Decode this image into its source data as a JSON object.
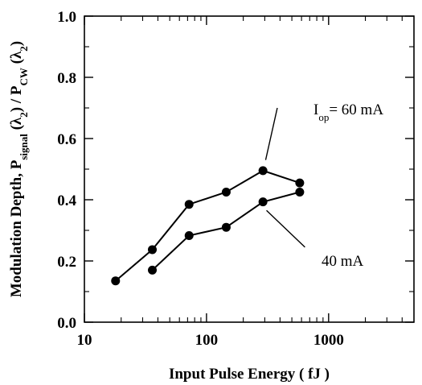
{
  "chart_data": {
    "type": "line",
    "xlabel": "Input Pulse Energy ( fJ )",
    "ylabel": {
      "parts": [
        {
          "text": "Modulation Depth, P",
          "sub": false
        },
        {
          "text": "signal",
          "sub": true
        },
        {
          "text": " (λ",
          "sub": false
        },
        {
          "text": "2",
          "sub": true
        },
        {
          "text": ") / P",
          "sub": false
        },
        {
          "text": "CW",
          "sub": true
        },
        {
          "text": " (λ",
          "sub": false
        },
        {
          "text": "2",
          "sub": true
        },
        {
          "text": ")",
          "sub": false
        }
      ]
    },
    "x_scale": "log",
    "xlim": [
      10,
      5000
    ],
    "ylim": [
      0.0,
      1.0
    ],
    "x_ticks": [
      {
        "value": 10,
        "label": "10"
      },
      {
        "value": 100,
        "label": "100"
      },
      {
        "value": 1000,
        "label": "1000"
      }
    ],
    "y_ticks": [
      {
        "value": 0.0,
        "label": "0.0"
      },
      {
        "value": 0.2,
        "label": "0.2"
      },
      {
        "value": 0.4,
        "label": "0.4"
      },
      {
        "value": 0.6,
        "label": "0.6"
      },
      {
        "value": 0.8,
        "label": "0.8"
      },
      {
        "value": 1.0,
        "label": "1.0"
      }
    ],
    "grid": false,
    "legend": "none",
    "series": [
      {
        "points": [
          {
            "x": 18,
            "y": 0.135
          },
          {
            "x": 36,
            "y": 0.237
          },
          {
            "x": 72,
            "y": 0.385
          },
          {
            "x": 145,
            "y": 0.425
          },
          {
            "x": 290,
            "y": 0.495
          },
          {
            "x": 580,
            "y": 0.455
          }
        ]
      },
      {
        "points": [
          {
            "x": 36,
            "y": 0.17
          },
          {
            "x": 72,
            "y": 0.283
          },
          {
            "x": 145,
            "y": 0.31
          },
          {
            "x": 290,
            "y": 0.393
          },
          {
            "x": 580,
            "y": 0.425
          }
        ]
      }
    ],
    "annotations": [
      {
        "parts": [
          {
            "text": "I",
            "sub": false
          },
          {
            "text": "op",
            "sub": true
          },
          {
            "text": "= 60 mA",
            "sub": false
          }
        ],
        "pointer_from": {
          "x": 380,
          "y": 0.7
        },
        "pointer_to": {
          "x": 305,
          "y": 0.53
        }
      },
      {
        "parts": [
          {
            "text": "40 mA",
            "sub": false
          }
        ],
        "pointer_from": {
          "x": 310,
          "y": 0.365
        },
        "pointer_to": {
          "x": 640,
          "y": 0.245
        }
      }
    ],
    "colors": {
      "axis": "#000000",
      "line": "#000000",
      "marker": "#000000"
    }
  }
}
